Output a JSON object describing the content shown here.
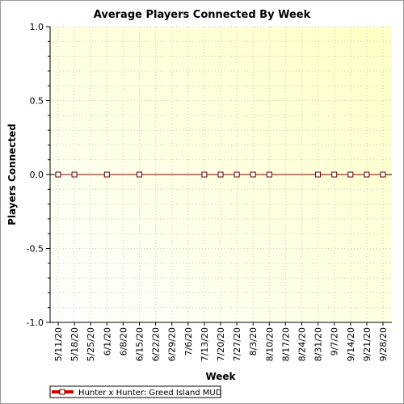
{
  "chart_data": {
    "type": "line",
    "title": "Average Players Connected By Week",
    "xlabel": "Week",
    "ylabel": "Players Connected",
    "ylim": [
      -1.0,
      1.0
    ],
    "yticks": [
      "1.0",
      "0.5",
      "0.0",
      "-0.5",
      "-1.0"
    ],
    "categories": [
      "5/11/20",
      "5/18/20",
      "5/25/20",
      "6/1/20",
      "6/8/20",
      "6/15/20",
      "6/22/20",
      "6/29/20",
      "7/6/20",
      "7/13/20",
      "7/20/20",
      "7/27/20",
      "8/3/20",
      "8/10/20",
      "8/17/20",
      "8/24/20",
      "8/31/20",
      "9/7/20",
      "9/14/20",
      "9/21/20",
      "9/28/20"
    ],
    "series": [
      {
        "name": "Hunter x Hunter: Greed Island MUD",
        "color": "#cc0000",
        "values": [
          0,
          0,
          null,
          0,
          null,
          0,
          null,
          null,
          null,
          0,
          0,
          0,
          0,
          0,
          null,
          null,
          0,
          0,
          0,
          0,
          0
        ]
      }
    ],
    "grid": true,
    "legend_position": "bottom-left",
    "plot_background": "pale yellow gradient"
  }
}
